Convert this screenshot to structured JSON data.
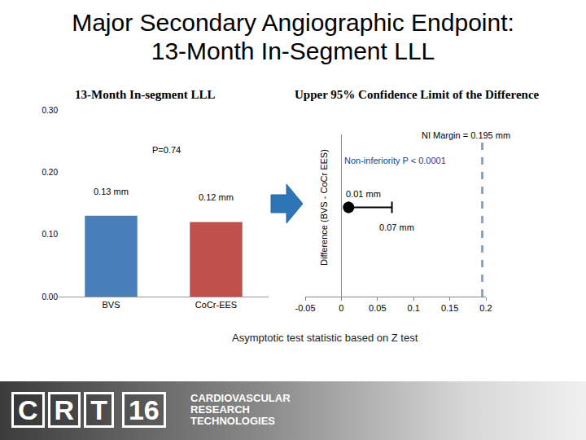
{
  "slide": {
    "title_lines": [
      "Major Secondary Angiographic Endpoint:",
      "13-Month In-Segment LLL"
    ],
    "footnote": "Asymptotic test statistic based on Z test",
    "logo": {
      "letters": "CRT",
      "number": "16",
      "lines": [
        "CARDIOVASCULAR",
        "RESEARCH",
        "TECHNOLOGIES"
      ]
    }
  },
  "chart_data": [
    {
      "type": "bar",
      "title": "13-Month In-segment LLL",
      "categories": [
        "BVS",
        "CoCr-EES"
      ],
      "values": [
        0.13,
        0.12
      ],
      "value_labels": [
        "0.13 mm",
        "0.12 mm"
      ],
      "data_labels": true,
      "colors": [
        "#4a7ebb",
        "#c0504d"
      ],
      "ylim": [
        0,
        0.3
      ],
      "yticks": [
        {
          "value": 0,
          "label": "0.00"
        },
        {
          "value": 0.1,
          "label": "0.10"
        },
        {
          "value": 0.2,
          "label": "0.20"
        },
        {
          "value": 0.3,
          "label": "0.30"
        }
      ],
      "grid": false,
      "annotations": [
        "P=0.74"
      ]
    },
    {
      "type": "scatter",
      "title": "Upper 95% Confidence Limit of the Difference",
      "ylabel": "Difference (BVS - CoCr EES)",
      "orientation": "horizontal",
      "values": [
        0.01
      ],
      "value_labels": [
        "0.01 mm"
      ],
      "data_labels": true,
      "ci_upper": [
        0.07
      ],
      "ci_upper_labels": [
        "0.07 mm"
      ],
      "ni_margin": {
        "value": 0.195,
        "label": "NI Margin = 0.195 mm"
      },
      "xlim": [
        -0.05,
        0.2
      ],
      "xticks": [
        -0.05,
        0,
        0.05,
        0.1,
        0.15,
        0.2
      ],
      "tick_labels": "x",
      "grid": false,
      "color": "#000000",
      "marker": "circle",
      "annotations": [
        "Non-inferiority P < 0.0001"
      ]
    }
  ]
}
